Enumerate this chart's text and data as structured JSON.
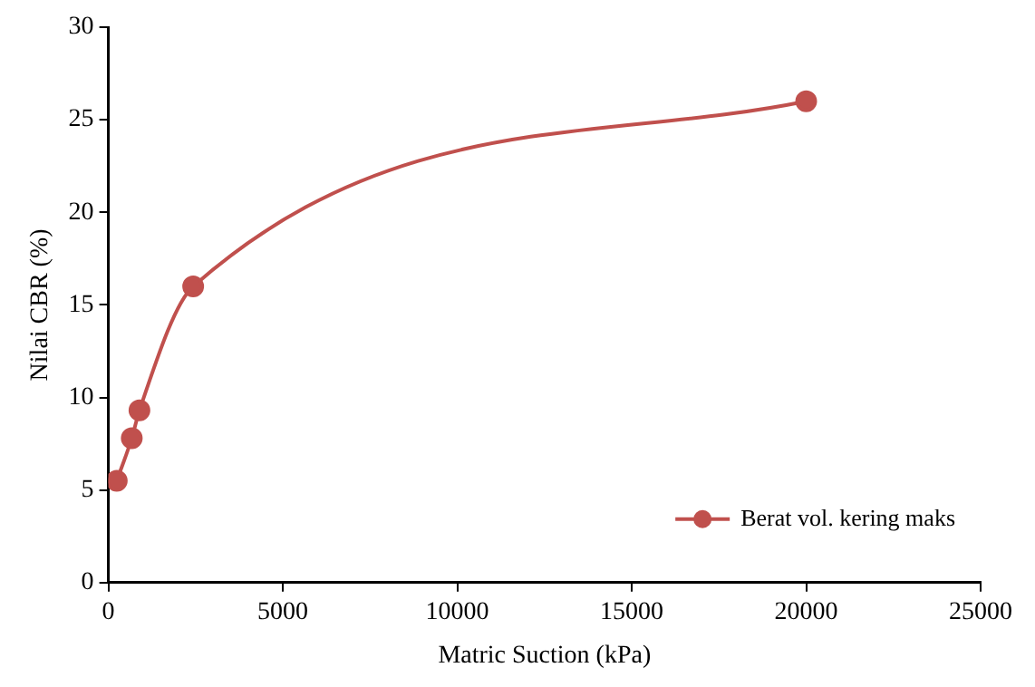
{
  "chart_data": {
    "type": "line",
    "xlabel": "Matric Suction (kPa)",
    "ylabel": "Nilai CBR (%)",
    "x": [
      240,
      670,
      890,
      2430,
      20000
    ],
    "series": [
      {
        "name": "Berat vol. kering maks",
        "color": "#c0504d",
        "values": [
          5.5,
          7.8,
          9.3,
          16.0,
          26.0
        ]
      }
    ],
    "marker": "circle",
    "xlim": [
      0,
      25000
    ],
    "xticks": [
      0,
      5000,
      10000,
      15000,
      20000,
      25000
    ],
    "ylim": [
      0,
      30
    ],
    "yticks": [
      0,
      5,
      10,
      15,
      20,
      25,
      30
    ],
    "grid": false,
    "legend": "bottom right"
  }
}
